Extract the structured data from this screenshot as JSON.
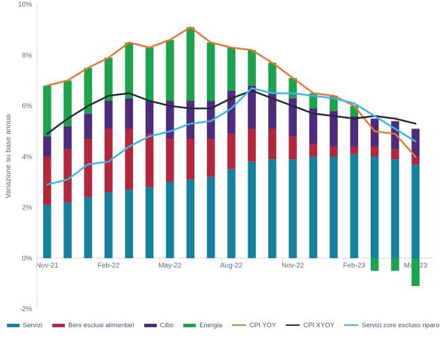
{
  "chart_data": {
    "type": "combo-stacked-bar-line",
    "title": "",
    "xlabel": "",
    "ylabel": "Variazione su base annua",
    "ylim": [
      -2,
      10
    ],
    "grid": false,
    "legend_position": "bottom",
    "y_ticks": [
      {
        "value": 10,
        "label": "10%"
      },
      {
        "value": 8,
        "label": "8%"
      },
      {
        "value": 6,
        "label": "6%"
      },
      {
        "value": 4,
        "label": "4%"
      },
      {
        "value": 2,
        "label": "2%"
      },
      {
        "value": 0,
        "label": "0%"
      },
      {
        "value": -2,
        "label": "-2%"
      }
    ],
    "categories": [
      "Nov-21",
      "Dec-21",
      "Jan-22",
      "Feb-22",
      "Mar-22",
      "Apr-22",
      "May-22",
      "Jun-22",
      "Jul-22",
      "Aug-22",
      "Sep-22",
      "Oct-22",
      "Nov-22",
      "Dec-22",
      "Jan-23",
      "Feb-23",
      "Mar-23",
      "Apr-23",
      "May-23"
    ],
    "x_tick_labels": [
      "Nov-21",
      "Feb-22",
      "May-22",
      "Aug-22",
      "Nov-22",
      "Feb-23",
      "May-23"
    ],
    "x_tick_every": 3,
    "bar_series": [
      {
        "name": "Servizi",
        "color": "#16809f",
        "values": [
          2.1,
          2.2,
          2.4,
          2.6,
          2.7,
          2.8,
          3.0,
          3.1,
          3.2,
          3.5,
          3.8,
          3.9,
          3.9,
          4.0,
          4.0,
          4.1,
          4.0,
          3.9,
          3.7
        ]
      },
      {
        "name": "Beni esclusi alimentari",
        "color": "#b2273b",
        "values": [
          1.9,
          2.1,
          2.3,
          2.5,
          2.4,
          2.1,
          1.7,
          1.6,
          1.5,
          1.4,
          1.3,
          1.2,
          0.9,
          0.5,
          0.4,
          0.3,
          0.4,
          0.4,
          0.3
        ]
      },
      {
        "name": "Cibo",
        "color": "#4f2b7e",
        "values": [
          0.8,
          0.9,
          1.0,
          1.1,
          1.2,
          1.3,
          1.5,
          1.5,
          1.5,
          1.7,
          1.7,
          1.4,
          1.5,
          1.4,
          1.4,
          1.2,
          1.1,
          1.1,
          1.1
        ]
      },
      {
        "name": "Energia",
        "color": "#1ca34c",
        "values": [
          2.0,
          1.8,
          1.8,
          1.7,
          2.2,
          2.1,
          2.4,
          2.9,
          2.3,
          1.7,
          1.4,
          1.2,
          0.8,
          0.6,
          0.6,
          0.4,
          -0.5,
          -0.5,
          -1.1
        ]
      }
    ],
    "line_series": [
      {
        "name": "CPI YOY",
        "color": "#e8772e",
        "values": [
          6.8,
          7.0,
          7.5,
          7.9,
          8.5,
          8.3,
          8.6,
          9.1,
          8.5,
          8.3,
          8.2,
          7.7,
          7.1,
          6.5,
          6.4,
          6.0,
          5.0,
          4.9,
          4.0
        ]
      },
      {
        "name": "CPI XYOY",
        "color": "#222a38",
        "values": [
          4.9,
          5.5,
          6.0,
          6.4,
          6.5,
          6.2,
          6.0,
          5.9,
          5.9,
          6.3,
          6.6,
          6.3,
          6.0,
          5.7,
          5.6,
          5.5,
          5.6,
          5.5,
          5.3
        ]
      },
      {
        "name": "Servizi core escluso riparo",
        "color": "#3cb4ee",
        "values": [
          2.9,
          3.1,
          3.7,
          3.8,
          4.4,
          4.8,
          5.0,
          5.3,
          5.4,
          5.9,
          6.7,
          6.5,
          6.5,
          6.4,
          6.3,
          6.1,
          5.6,
          5.1,
          4.6
        ]
      }
    ]
  }
}
